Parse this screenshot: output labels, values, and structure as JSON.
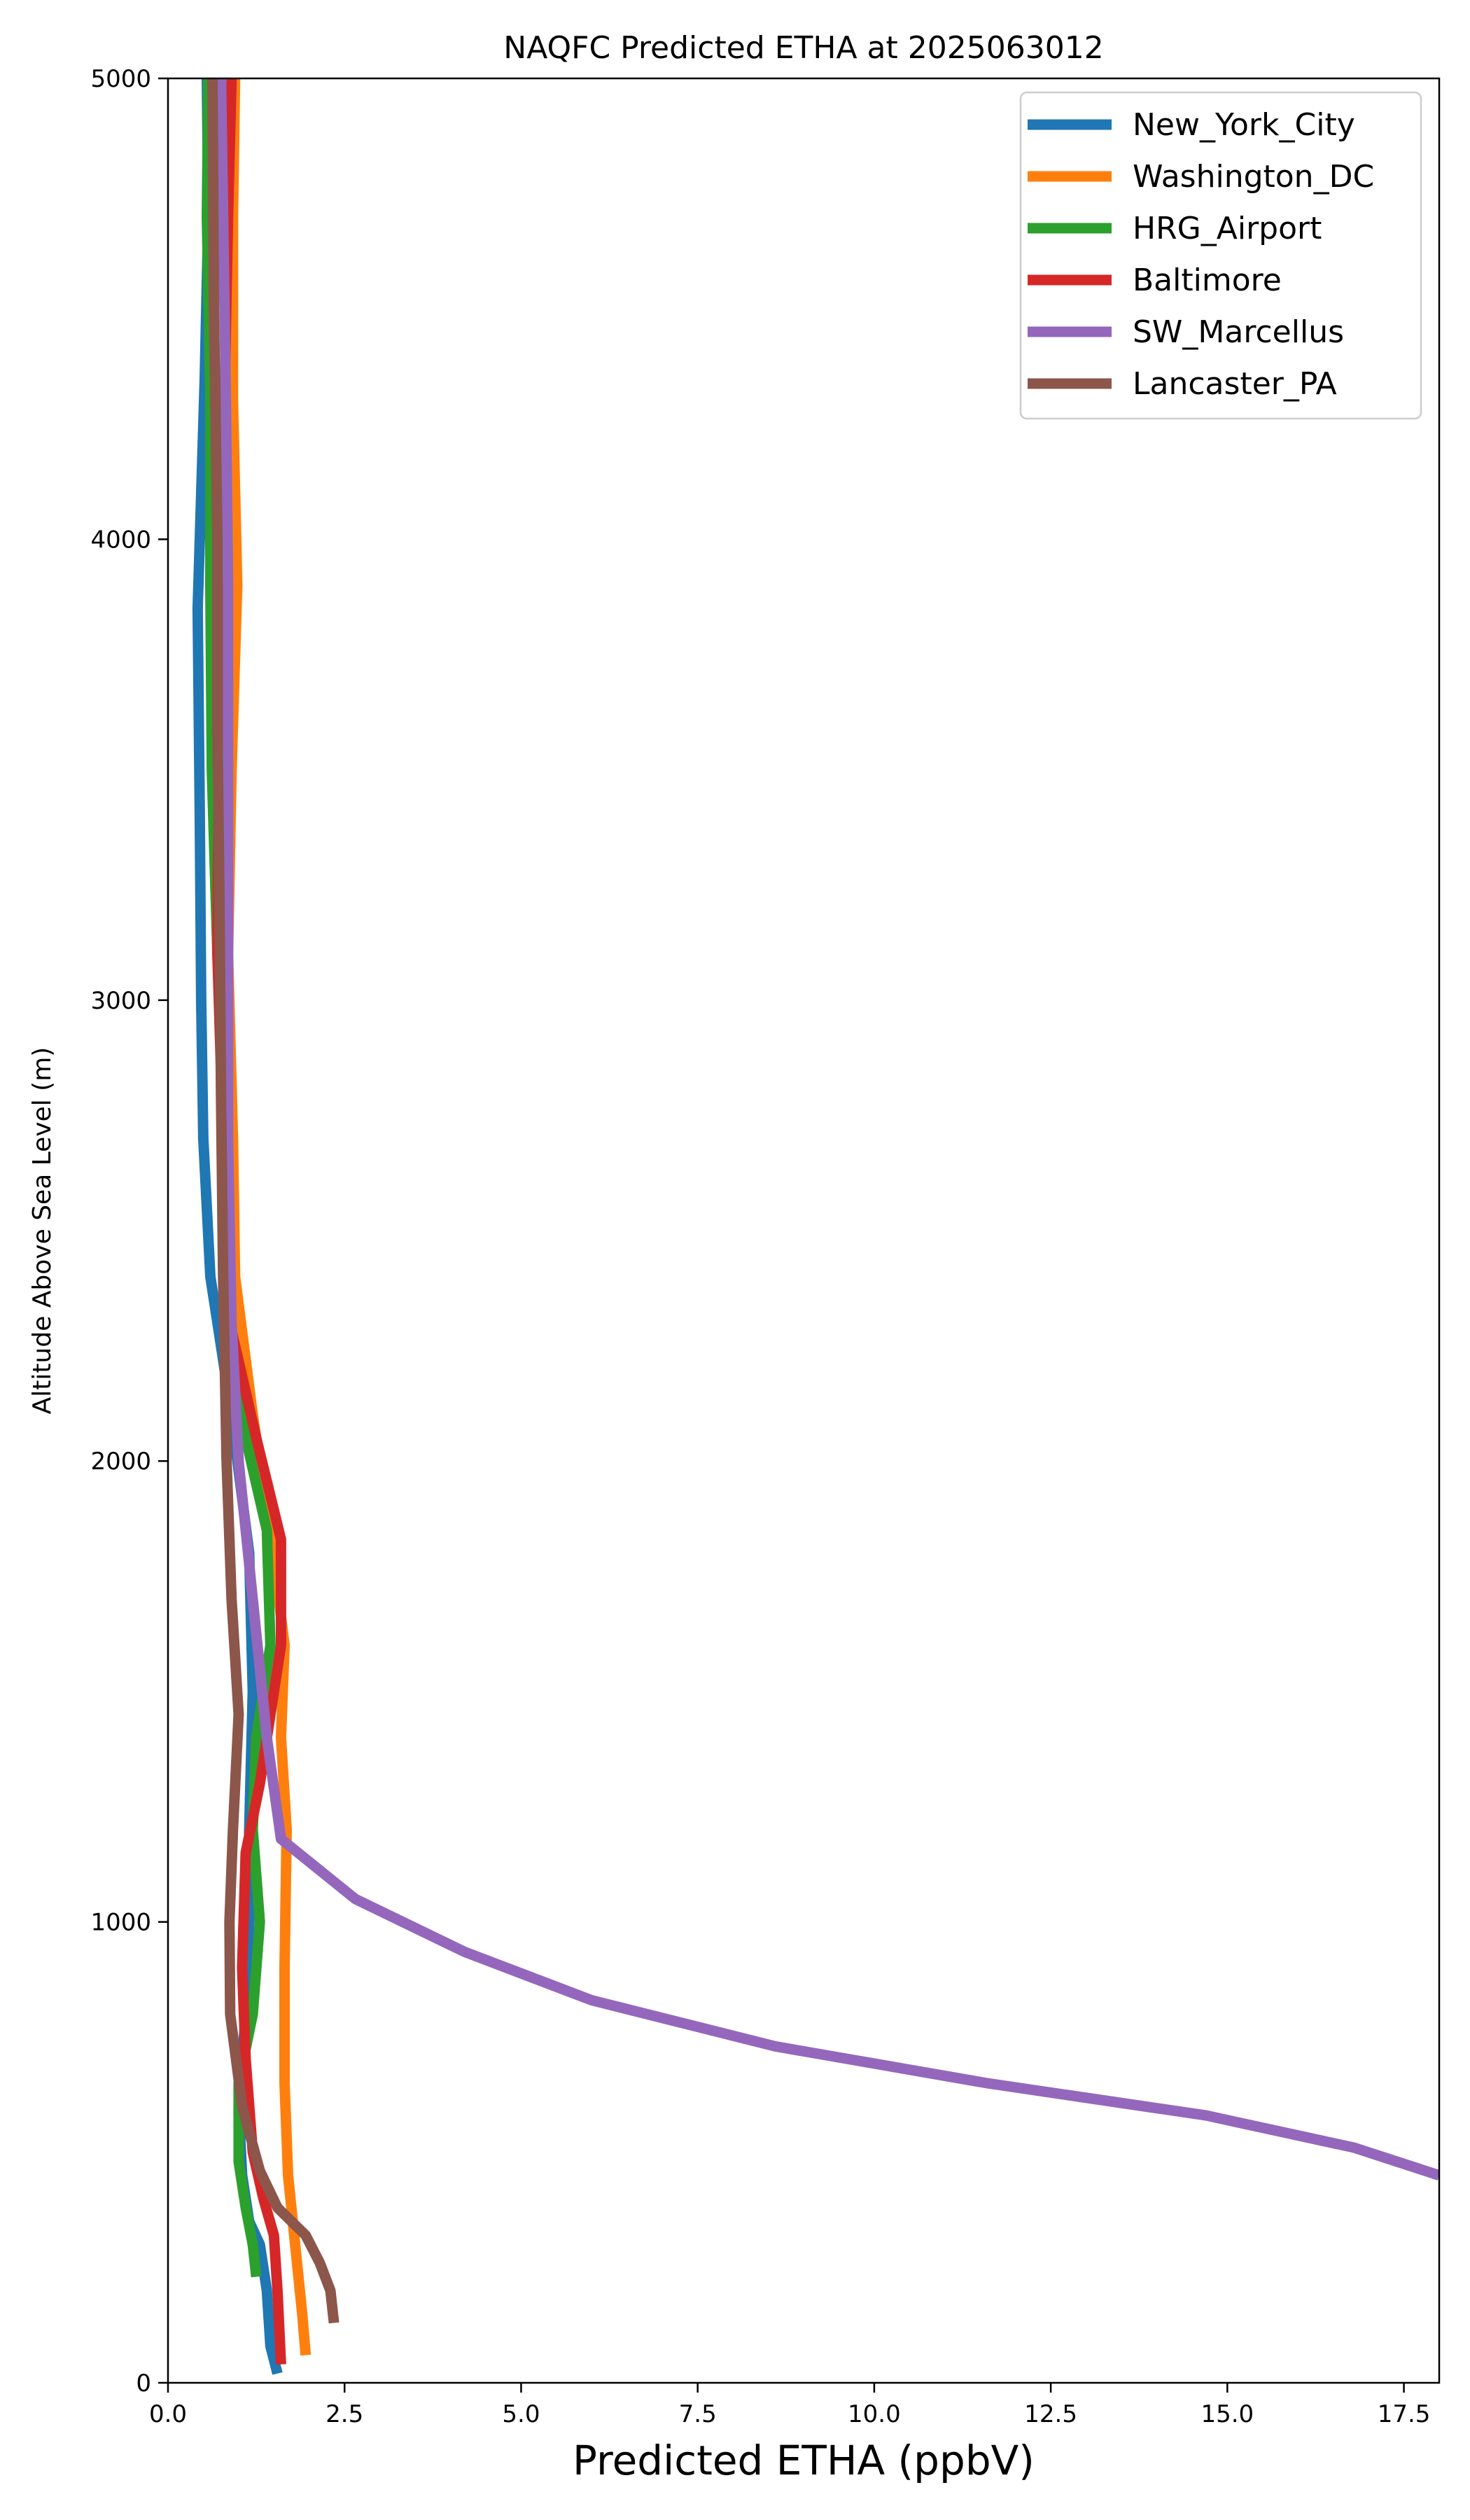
{
  "chart_data": {
    "type": "line",
    "title": "NAQFC Predicted ETHA at 2025063012",
    "xlabel": "Predicted ETHA (ppbV)",
    "ylabel": "Altitude Above Sea Level (m)",
    "xlim": [
      0,
      18
    ],
    "ylim": [
      0,
      5000
    ],
    "x_ticks": [
      0.0,
      2.5,
      5.0,
      7.5,
      10.0,
      12.5,
      15.0,
      17.5
    ],
    "x_tick_labels": [
      "0.0",
      "2.5",
      "5.0",
      "7.5",
      "10.0",
      "12.5",
      "15.0",
      "17.5"
    ],
    "y_ticks": [
      0,
      1000,
      2000,
      3000,
      4000,
      5000
    ],
    "y_tick_labels": [
      "0",
      "1000",
      "2000",
      "3000",
      "4000",
      "5000"
    ],
    "grid": false,
    "legend_position": "top-right",
    "series": [
      {
        "name": "New_York_City",
        "color": "#1f77b4",
        "points": [
          [
            1.55,
            20
          ],
          [
            1.45,
            80
          ],
          [
            1.4,
            200
          ],
          [
            1.3,
            300
          ],
          [
            1.15,
            350
          ],
          [
            1.05,
            450
          ],
          [
            1.0,
            600
          ],
          [
            1.1,
            800
          ],
          [
            1.15,
            1000
          ],
          [
            1.15,
            1200
          ],
          [
            1.2,
            1500
          ],
          [
            1.15,
            1800
          ],
          [
            0.9,
            2100
          ],
          [
            0.6,
            2400
          ],
          [
            0.5,
            2700
          ],
          [
            0.47,
            3000
          ],
          [
            0.45,
            3400
          ],
          [
            0.42,
            3850
          ],
          [
            0.52,
            4350
          ],
          [
            0.57,
            4700
          ],
          [
            0.55,
            5000
          ]
        ]
      },
      {
        "name": "Washington_DC",
        "color": "#ff7f0e",
        "points": [
          [
            1.95,
            60
          ],
          [
            1.9,
            150
          ],
          [
            1.8,
            300
          ],
          [
            1.7,
            450
          ],
          [
            1.65,
            650
          ],
          [
            1.65,
            900
          ],
          [
            1.68,
            1200
          ],
          [
            1.6,
            1400
          ],
          [
            1.65,
            1600
          ],
          [
            1.45,
            1850
          ],
          [
            1.2,
            2100
          ],
          [
            0.95,
            2400
          ],
          [
            0.92,
            2700
          ],
          [
            0.85,
            3100
          ],
          [
            0.9,
            3500
          ],
          [
            0.98,
            3900
          ],
          [
            0.92,
            4300
          ],
          [
            0.92,
            4700
          ],
          [
            0.95,
            5000
          ]
        ]
      },
      {
        "name": "HRG_Airport",
        "color": "#2ca02c",
        "points": [
          [
            1.25,
            230
          ],
          [
            1.2,
            300
          ],
          [
            1.1,
            380
          ],
          [
            1.0,
            480
          ],
          [
            1.0,
            650
          ],
          [
            1.2,
            800
          ],
          [
            1.3,
            1000
          ],
          [
            1.2,
            1200
          ],
          [
            1.25,
            1400
          ],
          [
            1.45,
            1600
          ],
          [
            1.4,
            1850
          ],
          [
            1.1,
            2050
          ],
          [
            0.85,
            2300
          ],
          [
            0.8,
            2700
          ],
          [
            0.7,
            3100
          ],
          [
            0.62,
            3500
          ],
          [
            0.6,
            3900
          ],
          [
            0.6,
            4300
          ],
          [
            0.55,
            4700
          ],
          [
            0.57,
            5000
          ]
        ]
      },
      {
        "name": "Baltimore",
        "color": "#d62728",
        "points": [
          [
            1.6,
            40
          ],
          [
            1.55,
            200
          ],
          [
            1.5,
            320
          ],
          [
            1.35,
            400
          ],
          [
            1.2,
            500
          ],
          [
            1.1,
            700
          ],
          [
            1.05,
            900
          ],
          [
            1.1,
            1150
          ],
          [
            1.3,
            1300
          ],
          [
            1.6,
            1600
          ],
          [
            1.6,
            1830
          ],
          [
            1.25,
            2050
          ],
          [
            0.8,
            2350
          ],
          [
            0.78,
            2700
          ],
          [
            0.7,
            3100
          ],
          [
            0.72,
            3500
          ],
          [
            0.77,
            3900
          ],
          [
            0.8,
            4300
          ],
          [
            0.85,
            4700
          ],
          [
            0.9,
            5000
          ]
        ]
      },
      {
        "name": "SW_Marcellus",
        "color": "#9467bd",
        "points": [
          [
            18.0,
            450
          ],
          [
            16.8,
            510
          ],
          [
            14.7,
            580
          ],
          [
            11.6,
            650
          ],
          [
            8.6,
            730
          ],
          [
            6.0,
            830
          ],
          [
            4.2,
            935
          ],
          [
            2.65,
            1050
          ],
          [
            1.6,
            1180
          ],
          [
            1.4,
            1400
          ],
          [
            1.2,
            1700
          ],
          [
            1.0,
            2000
          ],
          [
            0.9,
            2300
          ],
          [
            0.85,
            2700
          ],
          [
            0.85,
            3100
          ],
          [
            0.85,
            3500
          ],
          [
            0.85,
            3900
          ],
          [
            0.82,
            4300
          ],
          [
            0.78,
            4700
          ],
          [
            0.75,
            5000
          ]
        ]
      },
      {
        "name": "Lancaster_PA",
        "color": "#8c564b",
        "points": [
          [
            2.35,
            130
          ],
          [
            2.3,
            200
          ],
          [
            2.15,
            260
          ],
          [
            1.95,
            320
          ],
          [
            1.75,
            350
          ],
          [
            1.55,
            380
          ],
          [
            1.3,
            460
          ],
          [
            1.05,
            600
          ],
          [
            0.88,
            800
          ],
          [
            0.87,
            1000
          ],
          [
            0.92,
            1200
          ],
          [
            1.0,
            1450
          ],
          [
            0.9,
            1700
          ],
          [
            0.83,
            2000
          ],
          [
            0.78,
            2400
          ],
          [
            0.75,
            2800
          ],
          [
            0.73,
            3200
          ],
          [
            0.7,
            3600
          ],
          [
            0.7,
            4000
          ],
          [
            0.65,
            4500
          ],
          [
            0.63,
            5000
          ]
        ]
      }
    ]
  }
}
